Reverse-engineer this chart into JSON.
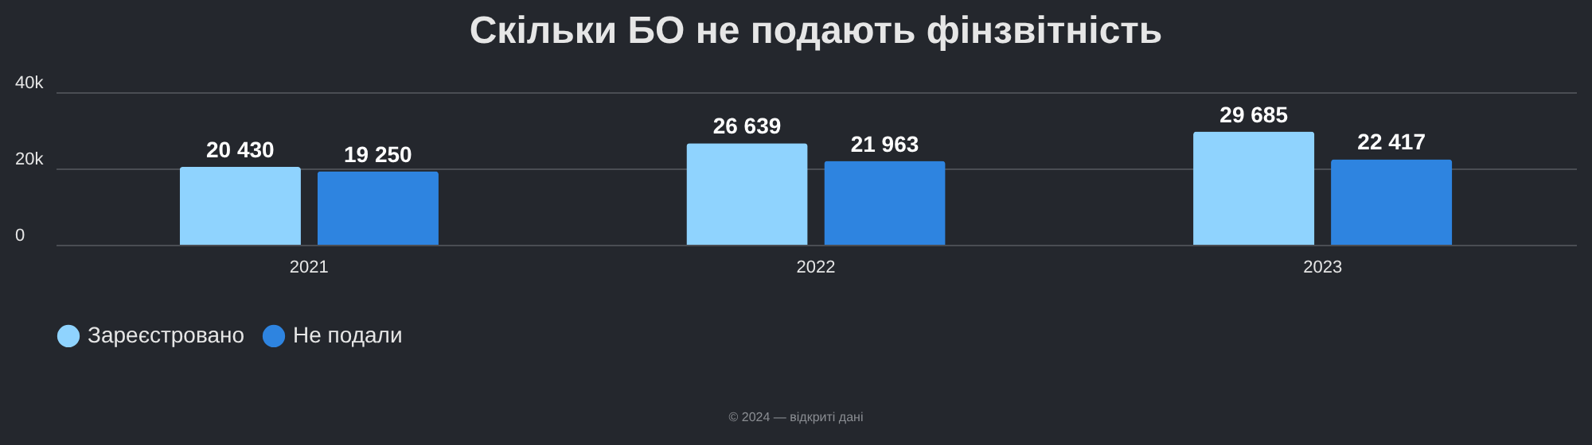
{
  "chart_data": {
    "type": "bar",
    "title": "Скільки БО не подають фінзвітність",
    "categories": [
      "2021",
      "2022",
      "2023"
    ],
    "series": [
      {
        "name": "Зареєстровано",
        "color": "#8fd3fe",
        "values": [
          20430,
          26639,
          29685
        ],
        "value_labels": [
          "20 430",
          "26 639",
          "29 685"
        ]
      },
      {
        "name": "Не подали",
        "color": "#2e84e0",
        "values": [
          19250,
          21963,
          22417
        ],
        "value_labels": [
          "19 250",
          "21 963",
          "22 417"
        ]
      }
    ],
    "ylim": [
      0,
      40000
    ],
    "yticks": [
      0,
      {
        "value": 20000,
        "label": "20k"
      },
      {
        "value": 40000,
        "label": "40k"
      }
    ],
    "grid": "y",
    "legend": "bottom",
    "annotations": [
      "© 2024 — відкриті дані"
    ]
  }
}
